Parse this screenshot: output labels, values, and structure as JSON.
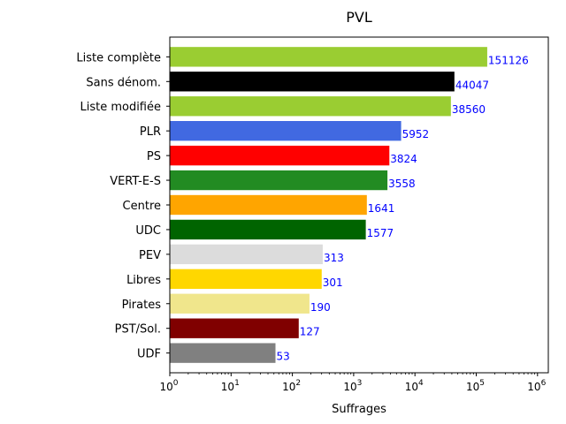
{
  "chart_data": {
    "type": "bar",
    "orientation": "horizontal",
    "title": "PVL",
    "xlabel": "Suffrages",
    "ylabel": "",
    "xscale": "log",
    "xlim": [
      1,
      1500000
    ],
    "x_ticks": [
      {
        "base": "10",
        "exp": "0",
        "value": 1
      },
      {
        "base": "10",
        "exp": "1",
        "value": 10
      },
      {
        "base": "10",
        "exp": "2",
        "value": 100
      },
      {
        "base": "10",
        "exp": "3",
        "value": 1000
      },
      {
        "base": "10",
        "exp": "4",
        "value": 10000
      },
      {
        "base": "10",
        "exp": "5",
        "value": 100000
      },
      {
        "base": "10",
        "exp": "6",
        "value": 1000000
      }
    ],
    "grid": false,
    "label_color": "#0000ff",
    "bars": [
      {
        "category": "Liste complète",
        "value": 151126,
        "label": "151126",
        "color": "#9acd32"
      },
      {
        "category": "Sans dénom.",
        "value": 44047,
        "label": "44047",
        "color": "#000000"
      },
      {
        "category": "Liste modifiée",
        "value": 38560,
        "label": "38560",
        "color": "#9acd32"
      },
      {
        "category": "PLR",
        "value": 5952,
        "label": "5952",
        "color": "#4169e1"
      },
      {
        "category": "PS",
        "value": 3824,
        "label": "3824",
        "color": "#ff0000"
      },
      {
        "category": "VERT-E-S",
        "value": 3558,
        "label": "3558",
        "color": "#228b22"
      },
      {
        "category": "Centre",
        "value": 1641,
        "label": "1641",
        "color": "#ffa500"
      },
      {
        "category": "UDC",
        "value": 1577,
        "label": "1577",
        "color": "#006400"
      },
      {
        "category": "PEV",
        "value": 313,
        "label": "313",
        "color": "#dcdcdc"
      },
      {
        "category": "Libres",
        "value": 301,
        "label": "301",
        "color": "#ffd700"
      },
      {
        "category": "Pirates",
        "value": 190,
        "label": "190",
        "color": "#f0e68c"
      },
      {
        "category": "PST/Sol.",
        "value": 127,
        "label": "127",
        "color": "#800000"
      },
      {
        "category": "UDF",
        "value": 53,
        "label": "53",
        "color": "#808080"
      }
    ]
  }
}
